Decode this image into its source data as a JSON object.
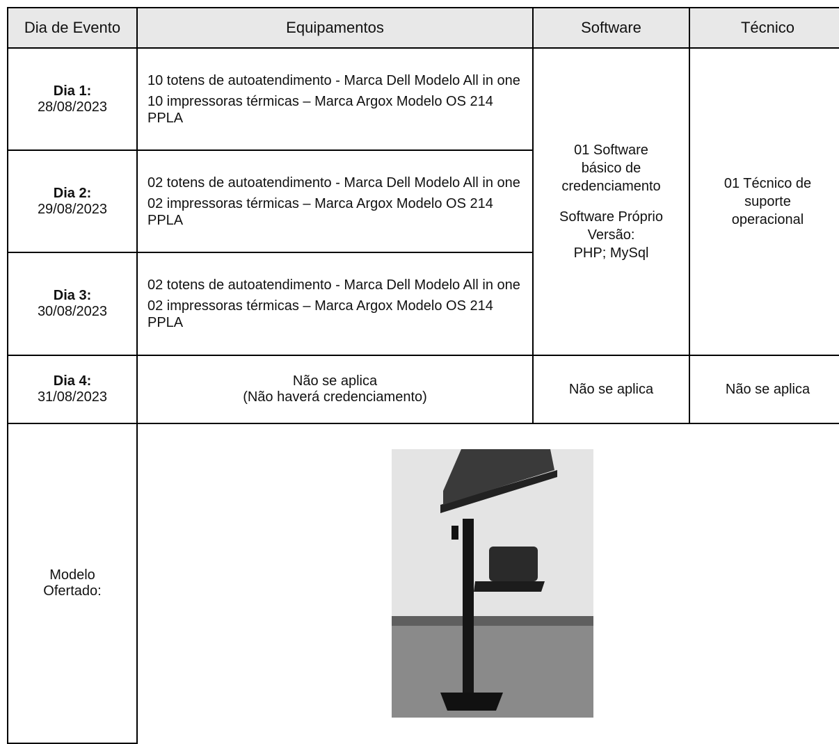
{
  "table": {
    "header": [
      "Dia de Evento",
      "Equipamentos",
      "Software",
      "Técnico"
    ],
    "rows": [
      {
        "day": "Dia 1:",
        "date": "28/08/2023",
        "equipment": [
          "10 totens de autoatendimento - Marca Dell Modelo All in one",
          "10 impressoras térmicas – Marca Argox Modelo OS 214 PPLA"
        ]
      },
      {
        "day": "Dia 2:",
        "date": "29/08/2023",
        "equipment": [
          "02 totens de autoatendimento - Marca Dell Modelo All in one",
          "02 impressoras térmicas – Marca Argox Modelo OS 214 PPLA"
        ]
      },
      {
        "day": "Dia 3:",
        "date": "30/08/2023",
        "equipment": [
          "02 totens de autoatendimento - Marca Dell Modelo All in one",
          "02 impressoras térmicas – Marca Argox Modelo OS 214 PPLA"
        ]
      }
    ],
    "software": [
      "01 Software básico de credenciamento",
      "Software Próprio",
      "Versão:",
      "PHP; MySql"
    ],
    "technician": "01 Técnico de suporte operacional",
    "day4": {
      "day": "Dia 4:",
      "date": "31/08/2023",
      "equipment": [
        "Não se aplica",
        "(Não haverá credenciamento)"
      ],
      "software": "Não se aplica",
      "technician": "Não se aplica"
    },
    "model": "Modelo Ofertado:"
  }
}
